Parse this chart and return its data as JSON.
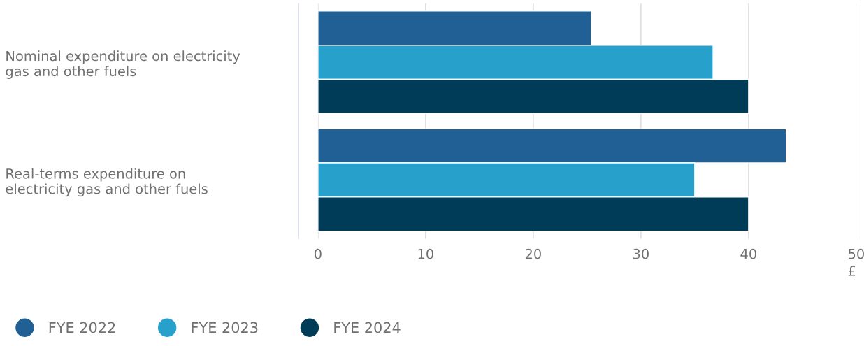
{
  "chart_data": {
    "type": "bar",
    "orientation": "horizontal",
    "categories": [
      "Nominal expenditure on electricity\ngas and other fuels",
      "Real-terms expenditure on\nelectricity gas and other fuels"
    ],
    "series": [
      {
        "name": "FYE 2022",
        "color": "#206095",
        "values": [
          25.4,
          43.5
        ]
      },
      {
        "name": "FYE 2023",
        "color": "#27a0cc",
        "values": [
          36.7,
          35.0
        ]
      },
      {
        "name": "FYE 2024",
        "color": "#003c57",
        "values": [
          40.0,
          40.0
        ]
      }
    ],
    "xlabel": "£",
    "xlim": [
      0,
      50
    ],
    "xticks": [
      0,
      10,
      20,
      30,
      40,
      50
    ],
    "grid": "x",
    "legend": "bottom left",
    "marker": "circle"
  }
}
